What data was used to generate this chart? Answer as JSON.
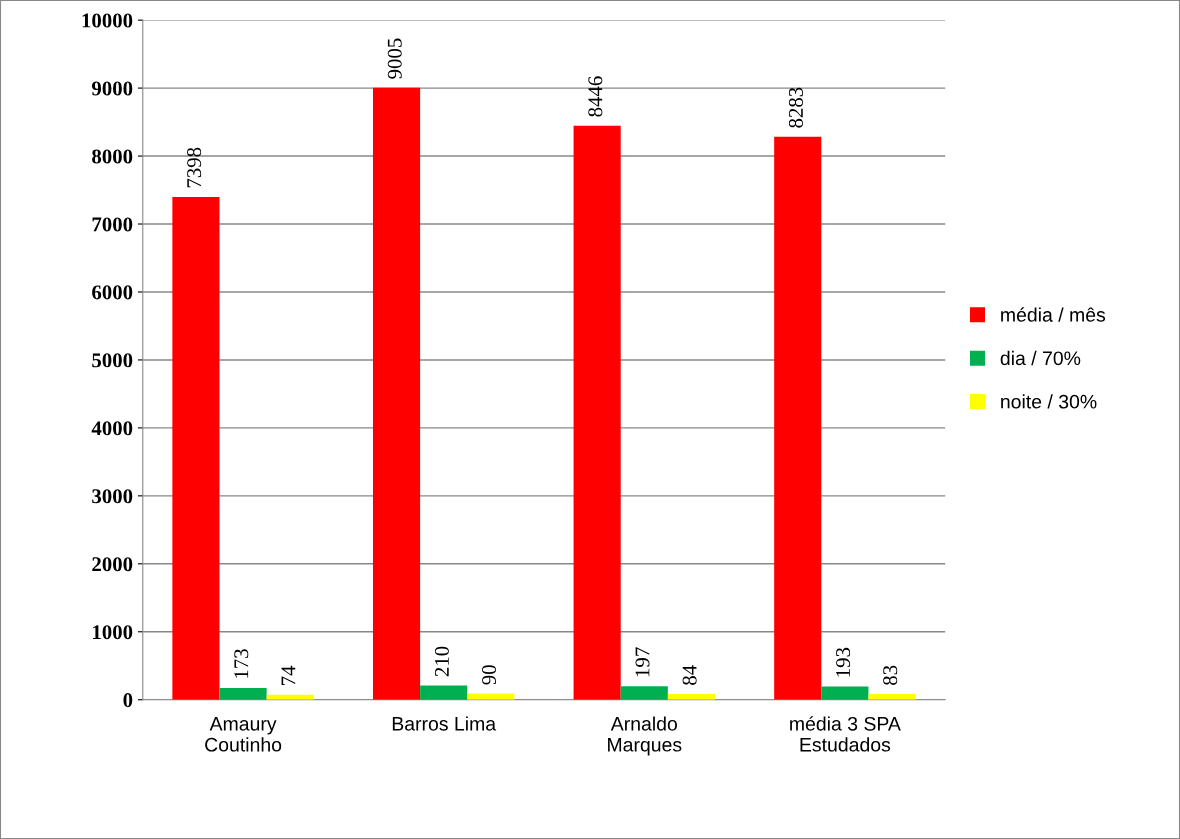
{
  "chart_data": {
    "type": "bar",
    "categories": [
      "Amaury\nCoutinho",
      "Barros Lima",
      "Arnaldo\nMarques",
      "média 3 SPA\nEstudados"
    ],
    "series": [
      {
        "name": "média / mês",
        "color": "#ff0000",
        "values": [
          7398,
          9005,
          8446,
          8283
        ]
      },
      {
        "name": "dia / 70%",
        "color": "#00b050",
        "values": [
          173,
          210,
          197,
          193
        ]
      },
      {
        "name": "noite / 30%",
        "color": "#ffff00",
        "values": [
          74,
          90,
          84,
          83
        ]
      }
    ],
    "ylim": [
      0,
      10000
    ],
    "yticks": [
      0,
      1000,
      2000,
      3000,
      4000,
      5000,
      6000,
      7000,
      8000,
      9000,
      10000
    ],
    "grid": "y",
    "legend": "right",
    "data_labels": true
  }
}
